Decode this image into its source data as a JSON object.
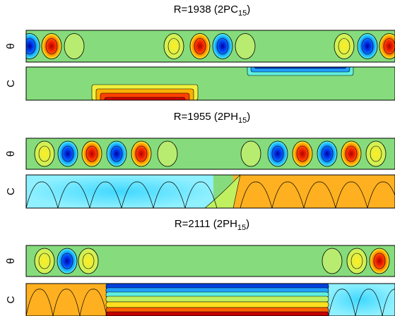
{
  "panels": [
    {
      "title": {
        "text": "R=1938 (2PC",
        "sub": "15",
        "end": ")"
      },
      "rows": [
        {
          "label": "θ"
        },
        {
          "label": "C"
        }
      ]
    },
    {
      "title": {
        "text": "R=1955 (2PH",
        "sub": "15",
        "end": ")"
      },
      "rows": [
        {
          "label": "θ"
        },
        {
          "label": "C"
        }
      ]
    },
    {
      "title": {
        "text": "R=2111 (2PH",
        "sub": "15",
        "end": ")"
      },
      "rows": [
        {
          "label": "θ"
        },
        {
          "label": "C"
        }
      ]
    }
  ]
}
